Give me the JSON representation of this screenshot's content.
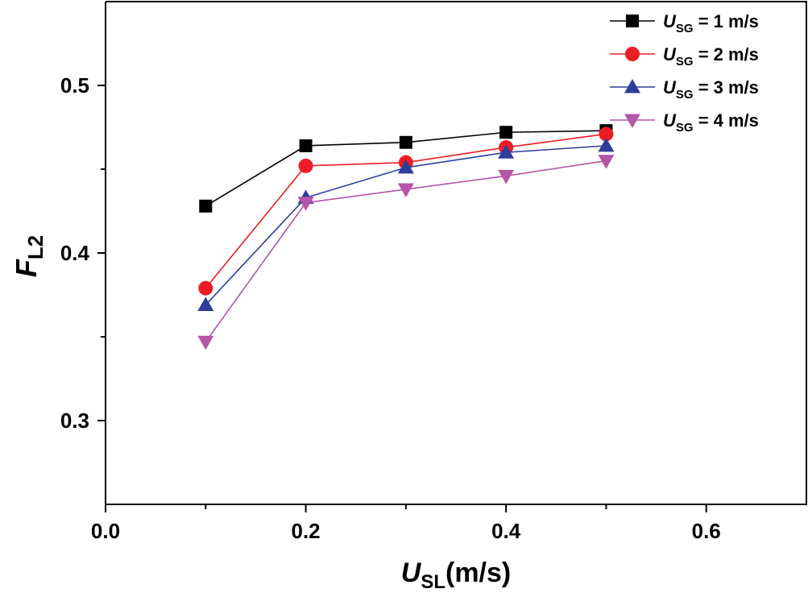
{
  "chart_data": {
    "type": "line",
    "title": "",
    "xlabel": {
      "main": "U",
      "sub": "SL",
      "suffix": "(m/s)"
    },
    "ylabel": {
      "main": "F",
      "sub": "L2"
    },
    "xlim": [
      0.0,
      0.7
    ],
    "ylim": [
      0.25,
      0.55
    ],
    "x_ticks": [
      {
        "value": 0.0,
        "label": "0.0"
      },
      {
        "value": 0.2,
        "label": "0.2"
      },
      {
        "value": 0.4,
        "label": "0.4"
      },
      {
        "value": 0.6,
        "label": "0.6"
      }
    ],
    "y_ticks": [
      {
        "value": 0.3,
        "label": "0.3"
      },
      {
        "value": 0.4,
        "label": "0.4"
      },
      {
        "value": 0.5,
        "label": "0.5"
      }
    ],
    "x_minor_ticks": [
      0.1,
      0.3,
      0.5
    ],
    "y_minor_ticks": [
      0.35,
      0.45
    ],
    "legend_position": "top-right",
    "series": [
      {
        "name": "U_SG = 1 m/s",
        "label_main": "U",
        "label_sub": "SG",
        "label_rest": " = 1 m/s",
        "color": "#000000",
        "marker": "square",
        "x": [
          0.1,
          0.2,
          0.3,
          0.4,
          0.5
        ],
        "values": [
          0.428,
          0.464,
          0.466,
          0.472,
          0.473
        ]
      },
      {
        "name": "U_SG = 2 m/s",
        "label_main": "U",
        "label_sub": "SG",
        "label_rest": " = 2 m/s",
        "color": "#ee1c24",
        "marker": "circle",
        "x": [
          0.1,
          0.2,
          0.3,
          0.4,
          0.5
        ],
        "values": [
          0.379,
          0.452,
          0.454,
          0.463,
          0.471
        ]
      },
      {
        "name": "U_SG = 3 m/s",
        "label_main": "U",
        "label_sub": "SG",
        "label_rest": " = 3 m/s",
        "color": "#2e3d9c",
        "marker": "triangle-up",
        "x": [
          0.1,
          0.2,
          0.3,
          0.4,
          0.5
        ],
        "values": [
          0.369,
          0.433,
          0.451,
          0.46,
          0.464
        ]
      },
      {
        "name": "U_SG = 4 m/s",
        "label_main": "U",
        "label_sub": "SG",
        "label_rest": " = 4 m/s",
        "color": "#b455a8",
        "marker": "triangle-down",
        "x": [
          0.1,
          0.2,
          0.3,
          0.4,
          0.5
        ],
        "values": [
          0.347,
          0.43,
          0.438,
          0.446,
          0.455
        ]
      }
    ]
  }
}
